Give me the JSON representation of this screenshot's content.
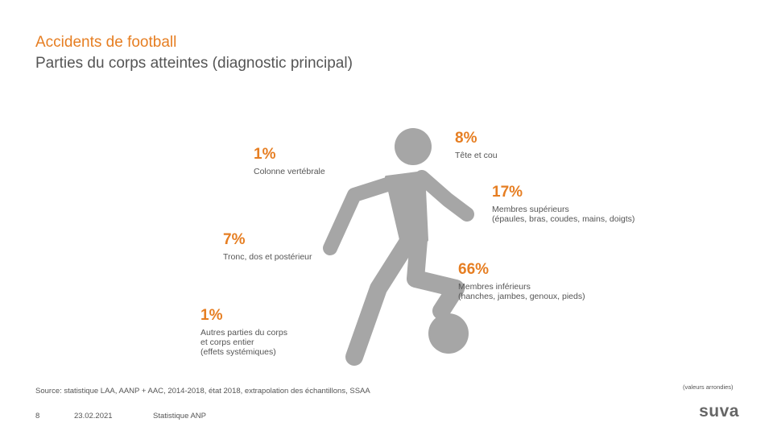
{
  "title": {
    "line1": "Accidents de football",
    "line2": "Parties du corps atteintes (diagnostic principal)"
  },
  "stats": {
    "head": {
      "pct": "8%",
      "label": "Tête et cou"
    },
    "spine": {
      "pct": "1%",
      "label": "Colonne vertébrale"
    },
    "upper": {
      "pct": "17%",
      "label": "Membres supérieurs\n(épaules, bras, coudes, mains, doigts)"
    },
    "trunk": {
      "pct": "7%",
      "label": "Tronc, dos et postérieur"
    },
    "lower": {
      "pct": "66%",
      "label": "Membres inférieurs\n(hanches, jambes, genoux, pieds)"
    },
    "other": {
      "pct": "1%",
      "label": "Autres parties du corps\net corps entier\n(effets systémiques)"
    }
  },
  "note": "(valeurs arrondies)",
  "source": "Source: statistique LAA, AANP + AAC, 2014-2018, état 2018, extrapolation des échantillons, SSAA",
  "footer": {
    "page": "8",
    "date": "23.02.2021",
    "label": "Statistique ANP"
  },
  "logo": "suva",
  "colors": {
    "accent": "#e67e22",
    "figure": "#a6a6a6",
    "text": "#555555"
  }
}
